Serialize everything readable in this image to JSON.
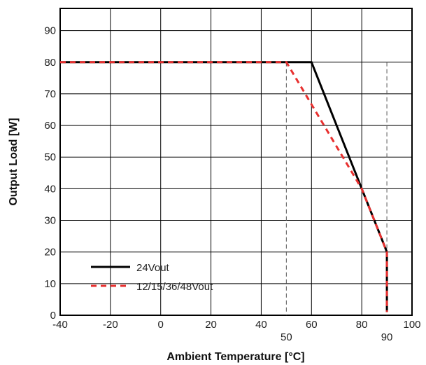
{
  "chart_data": {
    "type": "line",
    "xlabel": "Ambient Temperature [°C]",
    "ylabel": "Output Load [W]",
    "xlim": [
      -40,
      100
    ],
    "ylim": [
      0,
      97
    ],
    "x_ticks": [
      "-40",
      "-20",
      "0",
      "20",
      "40",
      "60",
      "80",
      "100"
    ],
    "y_ticks": [
      "0",
      "10",
      "20",
      "30",
      "40",
      "50",
      "60",
      "70",
      "80",
      "90"
    ],
    "grid": true,
    "legend_position": "bottom-left",
    "annotations": [
      {
        "x": 50,
        "label": "50"
      },
      {
        "x": 90,
        "label": "90"
      }
    ],
    "series": [
      {
        "name": "24Vout",
        "style": "solid",
        "color": "#000000",
        "points": [
          [
            -40,
            80
          ],
          [
            60,
            80
          ],
          [
            90,
            20
          ],
          [
            90,
            1
          ]
        ]
      },
      {
        "name": "12/15/36/48Vout",
        "style": "dashed",
        "color": "#e8302f",
        "points": [
          [
            -40,
            80
          ],
          [
            50,
            80
          ],
          [
            80,
            40
          ],
          [
            90,
            20
          ],
          [
            90,
            1
          ]
        ]
      }
    ]
  }
}
